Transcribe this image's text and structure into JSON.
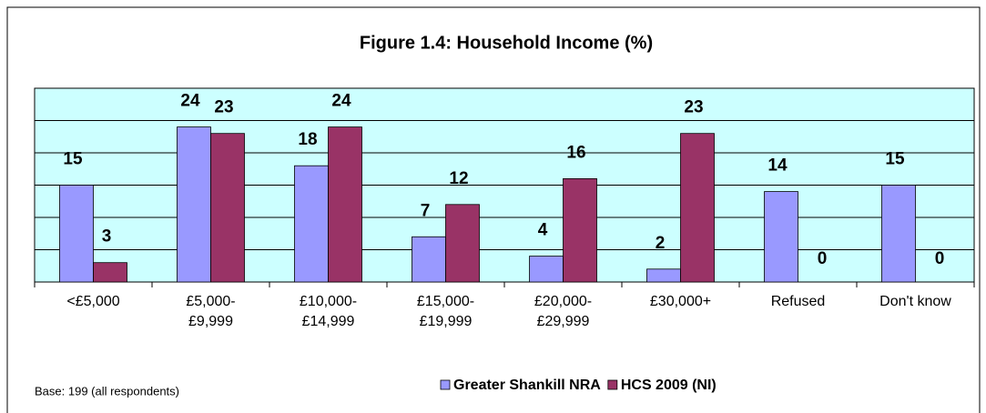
{
  "chart_data": {
    "type": "bar",
    "title": "Figure 1.4: Household Income (%)",
    "categories": [
      "<£5,000",
      "£5,000-£9,999",
      "£10,000-£14,999",
      "£15,000-£19,999",
      "£20,000-£29,999",
      "£30,000+",
      "Refused",
      "Don't know"
    ],
    "series": [
      {
        "name": "Greater Shankill NRA",
        "color": "#9999ff",
        "values": [
          15,
          24,
          18,
          7,
          4,
          2,
          14,
          15
        ]
      },
      {
        "name": "HCS 2009 (NI)",
        "color": "#993366",
        "values": [
          3,
          23,
          24,
          12,
          16,
          23,
          0,
          0
        ]
      }
    ],
    "ylim": [
      0,
      30
    ],
    "yticks": [
      0,
      5,
      10,
      15,
      20,
      25,
      30
    ],
    "grid": true,
    "plot_background": "#ccffff",
    "legend": "bottom",
    "note": "Base: 199 (all respondents)"
  }
}
